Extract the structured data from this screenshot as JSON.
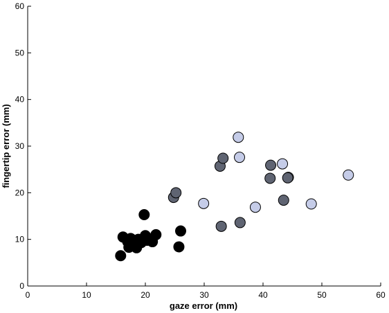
{
  "chart_data": {
    "type": "scatter",
    "xlabel": "gaze error (mm)",
    "ylabel": "fingertip error (mm)",
    "xlim": [
      0,
      60
    ],
    "ylim": [
      0,
      60
    ],
    "xticks": [
      "0",
      "10",
      "20",
      "30",
      "40",
      "50",
      "60"
    ],
    "yticks": [
      "0",
      "10",
      "20",
      "30",
      "40",
      "50",
      "60"
    ],
    "grid": false,
    "series": [
      {
        "color": "#000000",
        "points": [
          {
            "x": 15.8,
            "y": 6.5
          },
          {
            "x": 16.2,
            "y": 10.5
          },
          {
            "x": 17.0,
            "y": 9.5
          },
          {
            "x": 17.2,
            "y": 8.3
          },
          {
            "x": 17.5,
            "y": 10.2
          },
          {
            "x": 18.0,
            "y": 9.0
          },
          {
            "x": 18.5,
            "y": 8.2
          },
          {
            "x": 18.8,
            "y": 10.0
          },
          {
            "x": 19.3,
            "y": 9.3
          },
          {
            "x": 19.8,
            "y": 15.3
          },
          {
            "x": 20.0,
            "y": 10.8
          },
          {
            "x": 20.3,
            "y": 9.8
          },
          {
            "x": 21.2,
            "y": 9.5
          },
          {
            "x": 21.8,
            "y": 11.0
          },
          {
            "x": 25.7,
            "y": 8.4
          },
          {
            "x": 26.0,
            "y": 11.8
          }
        ]
      },
      {
        "color": "#5f6472",
        "points": [
          {
            "x": 24.8,
            "y": 19.0
          },
          {
            "x": 25.2,
            "y": 20.0
          },
          {
            "x": 32.7,
            "y": 25.7
          },
          {
            "x": 33.2,
            "y": 27.4
          },
          {
            "x": 32.9,
            "y": 12.8
          },
          {
            "x": 36.1,
            "y": 13.6
          },
          {
            "x": 41.2,
            "y": 23.1
          },
          {
            "x": 41.3,
            "y": 25.9
          },
          {
            "x": 43.5,
            "y": 18.4
          },
          {
            "x": 44.2,
            "y": 23.2
          }
        ]
      },
      {
        "color": "#c5cce8",
        "points": [
          {
            "x": 29.9,
            "y": 17.7
          },
          {
            "x": 35.8,
            "y": 31.9
          },
          {
            "x": 36.0,
            "y": 27.6
          },
          {
            "x": 38.7,
            "y": 16.9
          },
          {
            "x": 43.3,
            "y": 26.2
          },
          {
            "x": 44.3,
            "y": 23.3
          },
          {
            "x": 48.2,
            "y": 17.6
          },
          {
            "x": 54.5,
            "y": 23.8
          }
        ]
      }
    ]
  }
}
